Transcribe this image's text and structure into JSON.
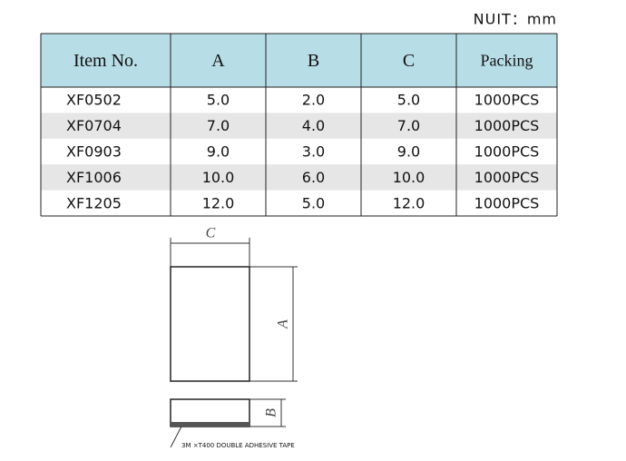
{
  "unit": "NUIT：mm",
  "table": {
    "header": [
      "Item No.",
      "A",
      "B",
      "C",
      "Packing"
    ],
    "rows": [
      [
        "XF0502",
        "5.0",
        "2.0",
        "5.0",
        "1000PCS"
      ],
      [
        "XF0704",
        "7.0",
        "4.0",
        "7.0",
        "1000PCS"
      ],
      [
        "XF0903",
        "9.0",
        "3.0",
        "9.0",
        "1000PCS"
      ],
      [
        "XF1006",
        "10.0",
        "6.0",
        "10.0",
        "1000PCS"
      ],
      [
        "XF1205",
        "12.0",
        "5.0",
        "12.0",
        "1000PCS"
      ]
    ]
  },
  "diagram": {
    "label_c": "C",
    "label_a": "A",
    "label_b": "B",
    "tape": "3M ×T400 DOUBLE ADHESIVE TAPE"
  }
}
